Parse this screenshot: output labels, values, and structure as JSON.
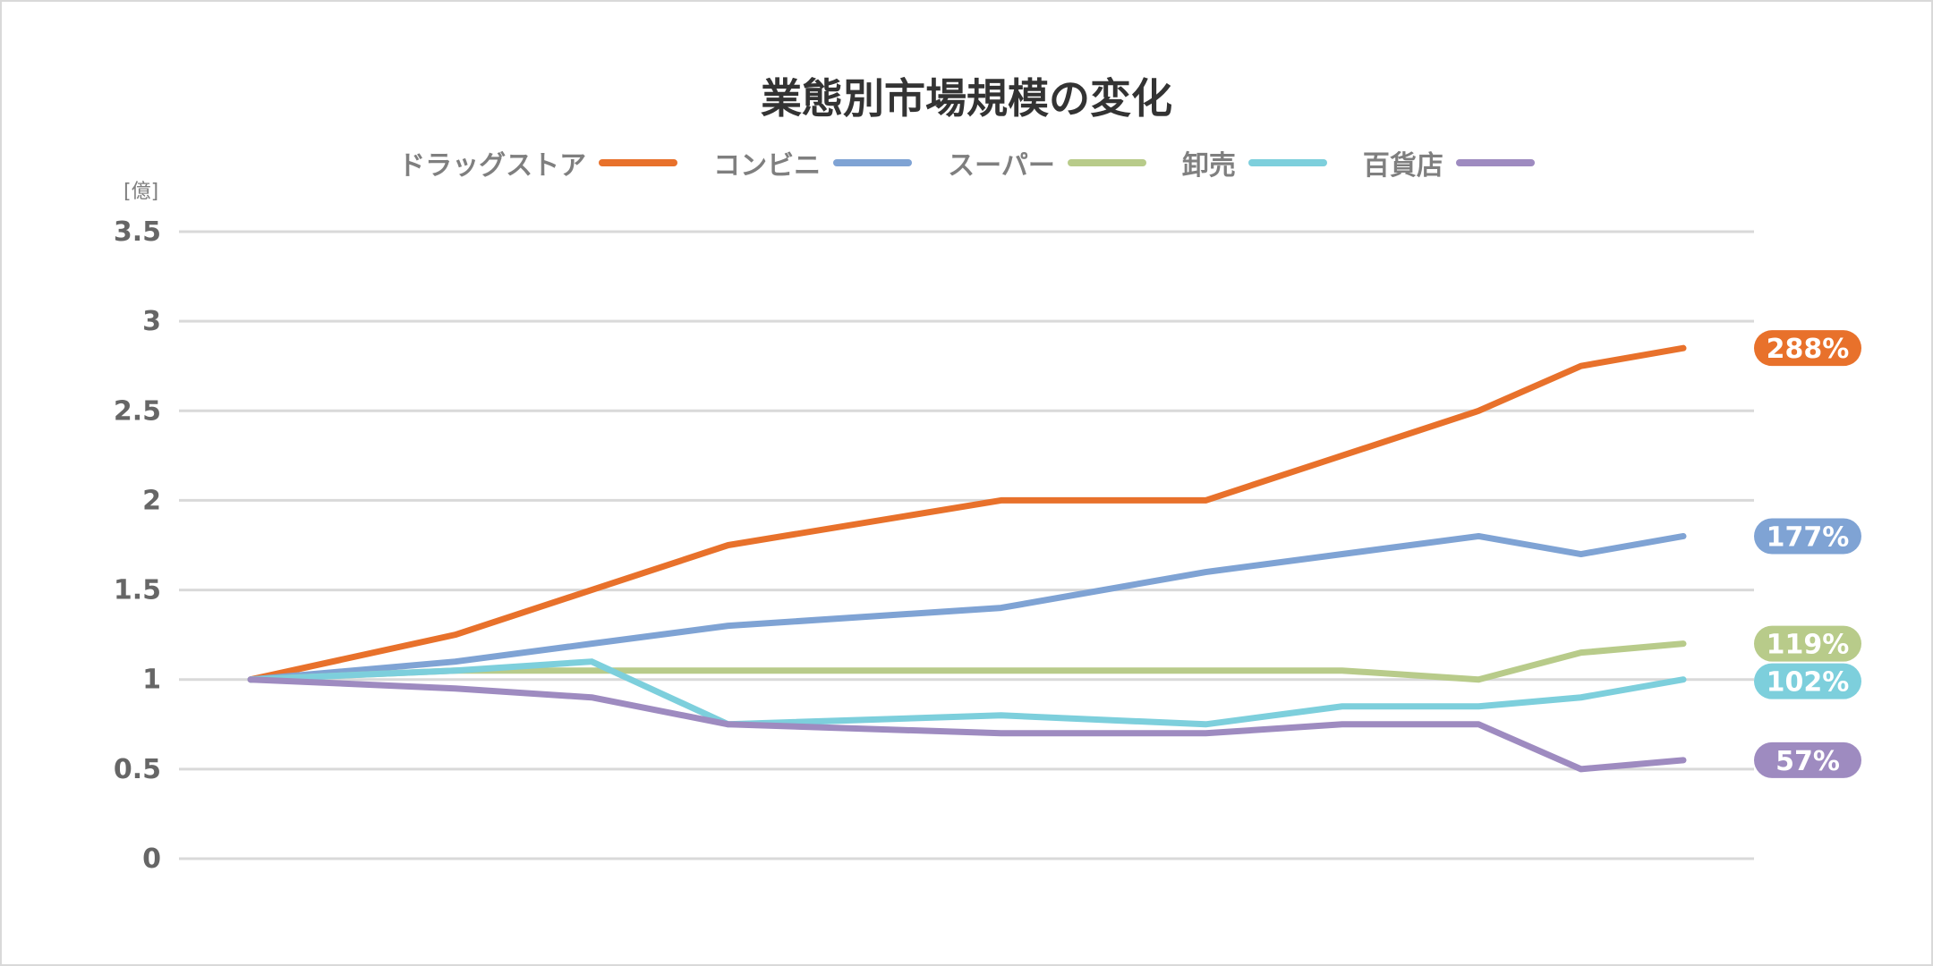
{
  "chart_data": {
    "type": "line",
    "title": "業態別市場規模の変化",
    "ylabel_unit": "[億]",
    "ylim": [
      0,
      3.5
    ],
    "yticks": [
      "0",
      "0.5",
      "1",
      "1.5",
      "2",
      "2.5",
      "3",
      "3.5"
    ],
    "ytick_values": [
      0,
      0.5,
      1,
      1.5,
      2,
      2.5,
      3,
      3.5
    ],
    "x": [
      0,
      1.5,
      2.5,
      3.5,
      5.5,
      7.0,
      8.0,
      9.0,
      9.75,
      10.5
    ],
    "grid": true,
    "legend_position": "top",
    "series": [
      {
        "name": "ドラッグストア",
        "color": "#E8712B",
        "values": [
          1,
          1.25,
          1.5,
          1.75,
          2.0,
          2.0,
          2.25,
          2.5,
          2.75,
          2.85
        ],
        "end_label": "288%"
      },
      {
        "name": "コンビニ",
        "color": "#7FA3D4",
        "values": [
          1,
          1.1,
          1.2,
          1.3,
          1.4,
          1.6,
          1.7,
          1.8,
          1.7,
          1.8
        ],
        "end_label": "177%"
      },
      {
        "name": "スーパー",
        "color": "#B8CB8A",
        "values": [
          1,
          1.05,
          1.05,
          1.05,
          1.05,
          1.05,
          1.05,
          1.0,
          1.15,
          1.2
        ],
        "end_label": "119%"
      },
      {
        "name": "卸売",
        "color": "#7DCFDC",
        "values": [
          1,
          1.05,
          1.1,
          0.75,
          0.8,
          0.75,
          0.85,
          0.85,
          0.9,
          1.0
        ],
        "end_label": "102%"
      },
      {
        "name": "百貨店",
        "color": "#9E8BC0",
        "values": [
          1,
          0.95,
          0.9,
          0.75,
          0.7,
          0.7,
          0.75,
          0.75,
          0.5,
          0.55
        ],
        "end_label": "57%"
      }
    ]
  }
}
